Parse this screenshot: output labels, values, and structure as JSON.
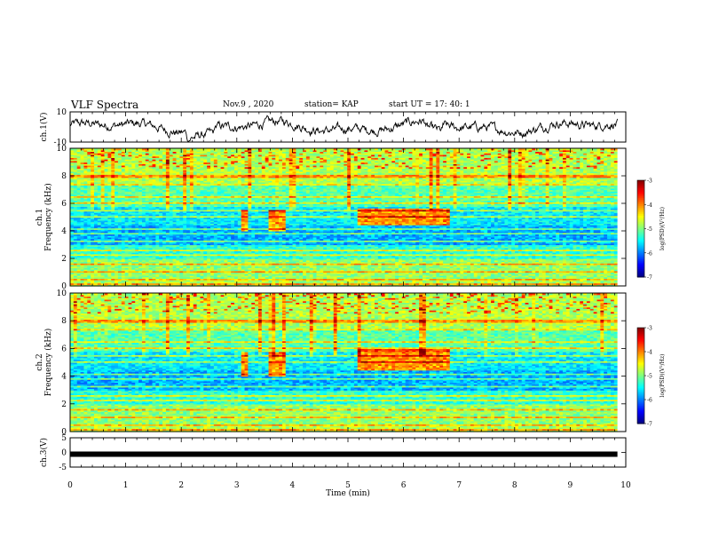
{
  "header": {
    "title": "VLF Spectra",
    "date": "Nov.9  , 2020",
    "station": "station= KAP",
    "start": "start  UT =   17: 40: 1"
  },
  "chart_data": [
    {
      "type": "line",
      "id": "ch1-waveform",
      "ylabel": "ch.1(V)",
      "ylim": [
        -10,
        10
      ],
      "yticks": [
        "10",
        "-10"
      ],
      "xlim": [
        0,
        10
      ]
    },
    {
      "type": "heatmap",
      "id": "ch1-spectrogram",
      "ylabel": "ch.1\nFrequency (kHz)",
      "ylabel_lines": [
        "ch.1",
        "Frequency (kHz)"
      ],
      "ylim": [
        0,
        10
      ],
      "yticks": [
        "0",
        "2",
        "4",
        "6",
        "8",
        "10"
      ],
      "xlim": [
        0,
        10
      ],
      "data_end_min": 9.85,
      "colorbar": {
        "range": [
          -7,
          -3
        ],
        "ticks": [
          "-3",
          "-4",
          "-5",
          "-6",
          "-7"
        ],
        "label": "log(PSD)(V²/Hz)"
      },
      "enhancement_bands": [
        {
          "t_start": 5.2,
          "t_end": 6.85,
          "f_low": 4.5,
          "f_high": 5.7
        },
        {
          "t_start": 3.05,
          "t_end": 3.2,
          "f_low": 4.0,
          "f_high": 5.5
        },
        {
          "t_start": 3.6,
          "t_end": 3.85,
          "f_low": 4.0,
          "f_high": 5.5
        }
      ]
    },
    {
      "type": "heatmap",
      "id": "ch2-spectrogram",
      "ylabel": "ch.2\nFrequency (kHz)",
      "ylabel_lines": [
        "ch.2",
        "Frequency (kHz)"
      ],
      "ylim": [
        0,
        10
      ],
      "yticks": [
        "0",
        "2",
        "4",
        "6",
        "8",
        "10"
      ],
      "xlim": [
        0,
        10
      ],
      "data_end_min": 9.85,
      "colorbar": {
        "range": [
          -7,
          -3
        ],
        "ticks": [
          "-3",
          "-4",
          "-5",
          "-6",
          "-7"
        ],
        "label": "log(PSD)(V²/Hz)"
      },
      "enhancement_bands": [
        {
          "t_start": 5.2,
          "t_end": 6.85,
          "f_low": 4.4,
          "f_high": 6.0
        },
        {
          "t_start": 3.05,
          "t_end": 3.2,
          "f_low": 4.0,
          "f_high": 5.8
        },
        {
          "t_start": 3.6,
          "t_end": 3.85,
          "f_low": 4.0,
          "f_high": 5.8
        }
      ]
    },
    {
      "type": "line",
      "id": "ch3-waveform",
      "ylabel": "ch.3(V)",
      "ylim": [
        -5,
        5
      ],
      "yticks": [
        "5",
        "0",
        "-5"
      ],
      "xlim": [
        0,
        10
      ],
      "constant_value": -0.6
    }
  ],
  "xaxis": {
    "label": "Time (min)",
    "ticks": [
      "0",
      "1",
      "2",
      "3",
      "4",
      "5",
      "6",
      "7",
      "8",
      "9",
      "10"
    ]
  }
}
